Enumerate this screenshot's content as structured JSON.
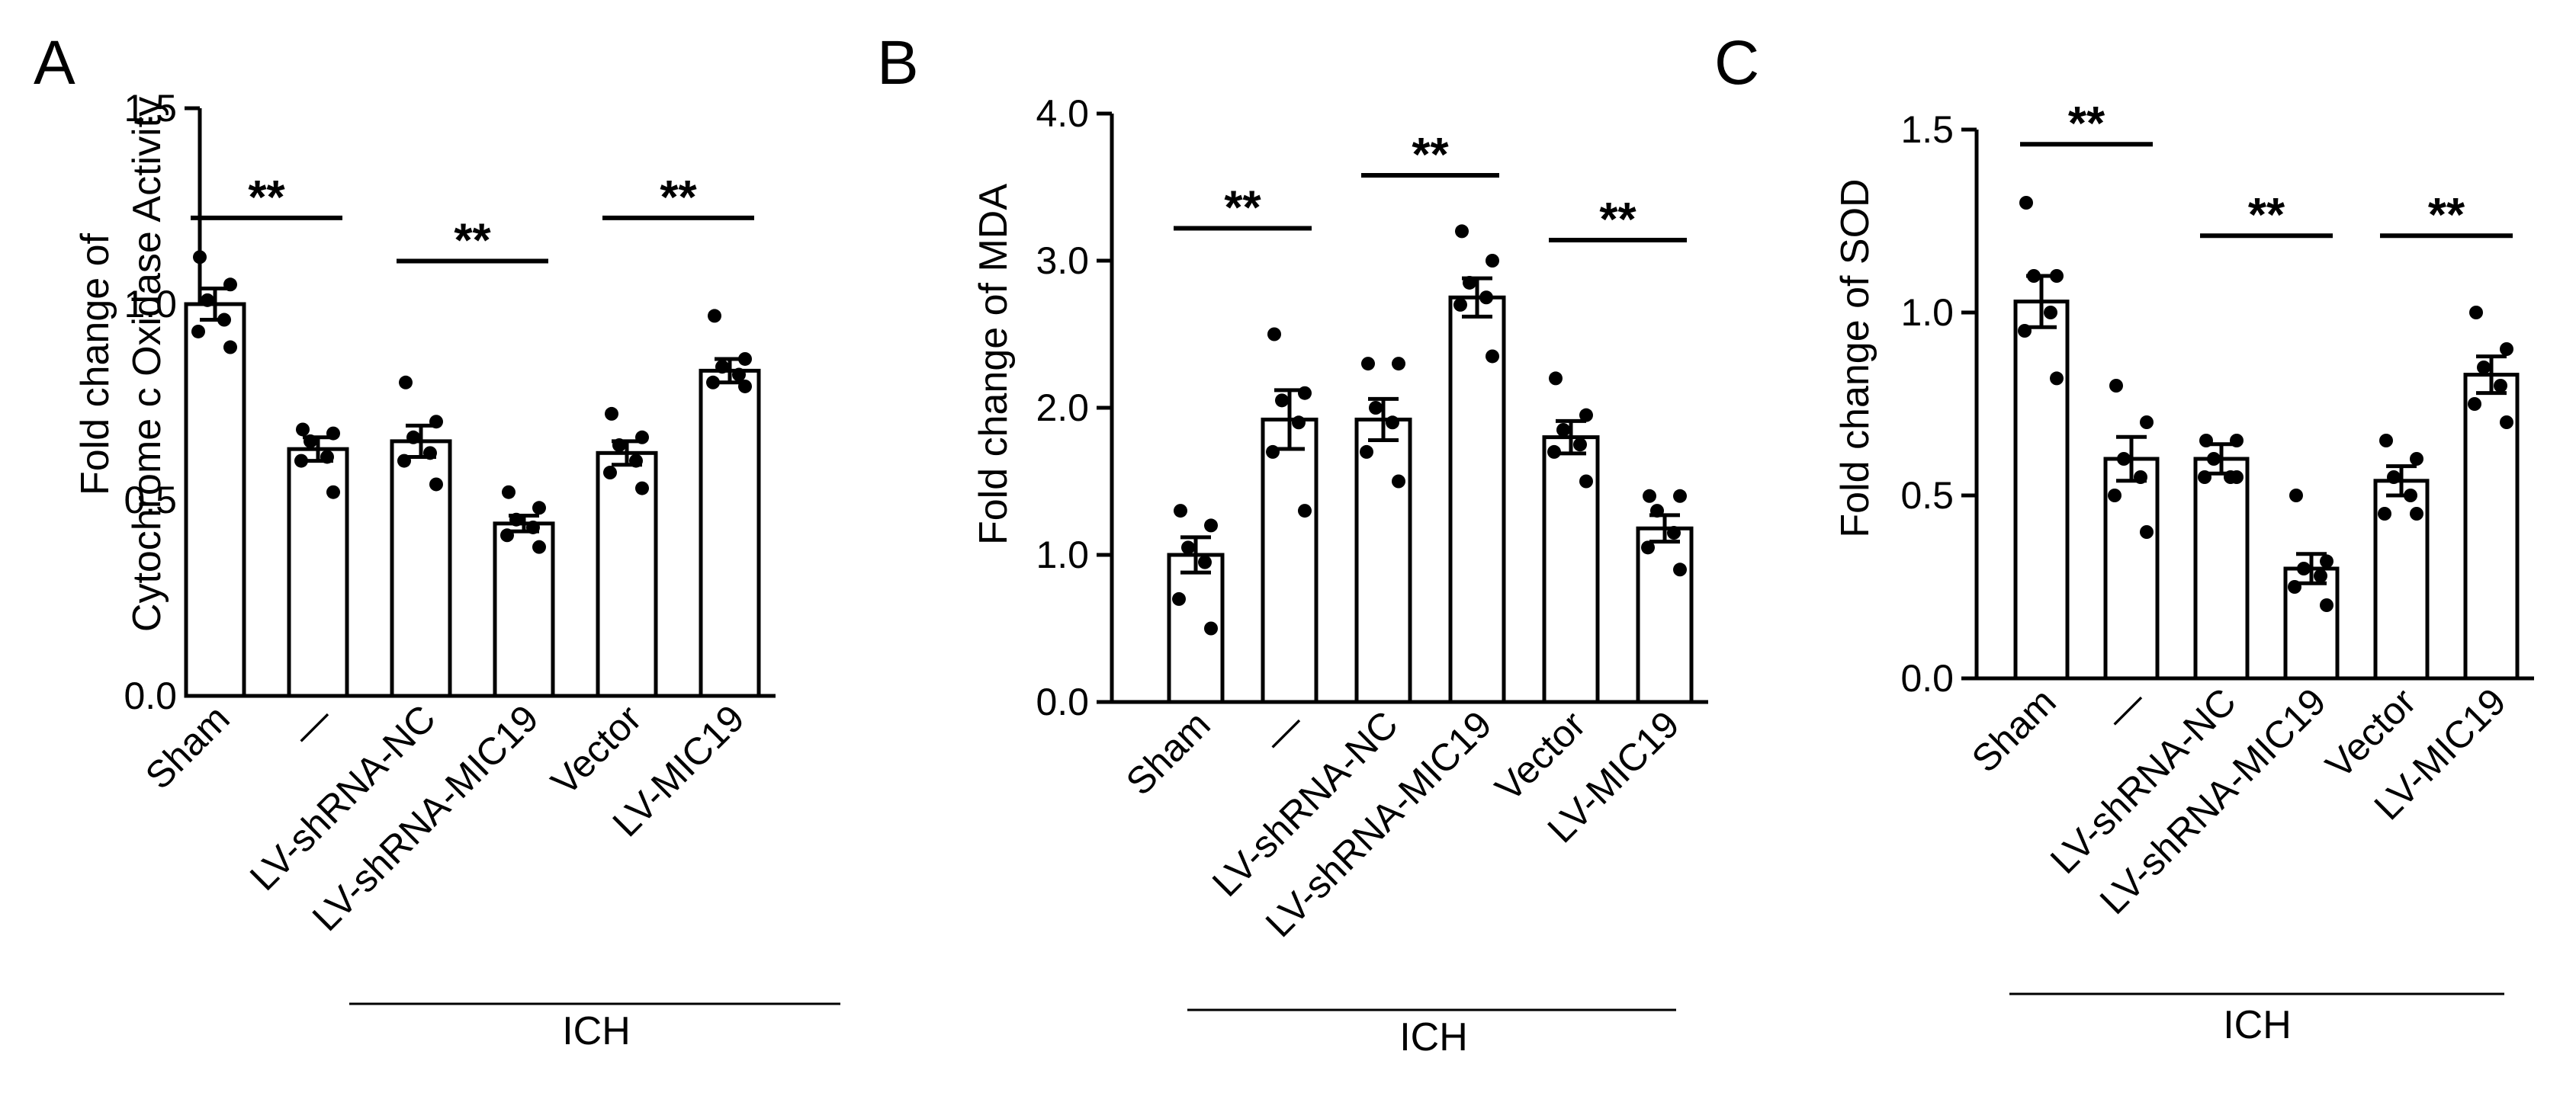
{
  "chart_data": [
    {
      "type": "bar",
      "panel": "A",
      "ylabel_lines": [
        "Fold change of",
        "Cytochrome c Oxidase Activity"
      ],
      "ylim": [
        0,
        1.5
      ],
      "yticks": [
        "0.0",
        "0.5",
        "1.0",
        "1.5"
      ],
      "categories": [
        "Sham",
        "—",
        "LV-shRNA-NC",
        "LV-shRNA-MIC19",
        "Vector",
        "LV-MIC19"
      ],
      "values": [
        1.0,
        0.63,
        0.65,
        0.44,
        0.62,
        0.83
      ],
      "errors": [
        0.04,
        0.03,
        0.04,
        0.02,
        0.03,
        0.03
      ],
      "points": [
        [
          1.12,
          1.05,
          1.01,
          0.96,
          0.93,
          0.89
        ],
        [
          0.68,
          0.67,
          0.65,
          0.61,
          0.6,
          0.52
        ],
        [
          0.8,
          0.7,
          0.66,
          0.62,
          0.6,
          0.54
        ],
        [
          0.52,
          0.48,
          0.45,
          0.43,
          0.41,
          0.38
        ],
        [
          0.72,
          0.66,
          0.64,
          0.6,
          0.57,
          0.53
        ],
        [
          0.97,
          0.86,
          0.84,
          0.82,
          0.8,
          0.79
        ]
      ],
      "significance": [
        {
          "from": 0,
          "to": 1,
          "y": 1.22,
          "label": "**"
        },
        {
          "from": 2,
          "to": 3,
          "y": 1.11,
          "label": "**"
        },
        {
          "from": 4,
          "to": 5,
          "y": 1.22,
          "label": "**"
        }
      ],
      "group_label": "ICH",
      "group_range": [
        1,
        5
      ]
    },
    {
      "type": "bar",
      "panel": "B",
      "ylabel_lines": [
        "Fold change of MDA"
      ],
      "ylim": [
        0,
        4.0
      ],
      "yticks": [
        "0.0",
        "1.0",
        "2.0",
        "3.0",
        "4.0"
      ],
      "categories": [
        "Sham",
        "—",
        "LV-shRNA-NC",
        "LV-shRNA-MIC19",
        "Vector",
        "LV-MIC19"
      ],
      "values": [
        1.0,
        1.92,
        1.92,
        2.75,
        1.8,
        1.18
      ],
      "errors": [
        0.12,
        0.2,
        0.14,
        0.13,
        0.11,
        0.09
      ],
      "points": [
        [
          1.3,
          1.2,
          1.05,
          0.95,
          0.7,
          0.5
        ],
        [
          2.5,
          2.1,
          2.05,
          1.9,
          1.7,
          1.3
        ],
        [
          2.3,
          2.3,
          2.0,
          1.9,
          1.7,
          1.5
        ],
        [
          3.2,
          3.0,
          2.85,
          2.75,
          2.7,
          2.35
        ],
        [
          2.2,
          1.95,
          1.85,
          1.75,
          1.7,
          1.5
        ],
        [
          1.4,
          1.4,
          1.3,
          1.15,
          1.05,
          0.9
        ]
      ],
      "significance": [
        {
          "from": 0,
          "to": 1,
          "y": 3.22,
          "label": "**"
        },
        {
          "from": 2,
          "to": 3,
          "y": 3.58,
          "label": "**"
        },
        {
          "from": 4,
          "to": 5,
          "y": 3.14,
          "label": "**"
        }
      ],
      "group_label": "ICH",
      "group_range": [
        1,
        5
      ]
    },
    {
      "type": "bar",
      "panel": "C",
      "ylabel_lines": [
        "Fold change of SOD"
      ],
      "ylim": [
        0,
        1.5
      ],
      "yticks": [
        "0.0",
        "0.5",
        "1.0",
        "1.5"
      ],
      "categories": [
        "Sham",
        "—",
        "LV-shRNA-NC",
        "LV-shRNA-MIC19",
        "Vector",
        "LV-MIC19"
      ],
      "values": [
        1.03,
        0.6,
        0.6,
        0.3,
        0.54,
        0.83
      ],
      "errors": [
        0.07,
        0.06,
        0.04,
        0.04,
        0.04,
        0.05
      ],
      "points": [
        [
          1.3,
          1.1,
          1.1,
          1.0,
          0.95,
          0.82
        ],
        [
          0.8,
          0.7,
          0.6,
          0.55,
          0.5,
          0.4
        ],
        [
          0.65,
          0.65,
          0.6,
          0.55,
          0.55,
          0.55
        ],
        [
          0.5,
          0.32,
          0.3,
          0.28,
          0.25,
          0.2
        ],
        [
          0.65,
          0.6,
          0.55,
          0.5,
          0.45,
          0.45
        ],
        [
          1.0,
          0.9,
          0.85,
          0.8,
          0.75,
          0.7
        ]
      ],
      "significance": [
        {
          "from": 0,
          "to": 1,
          "y": 1.46,
          "label": "**"
        },
        {
          "from": 2,
          "to": 3,
          "y": 1.21,
          "label": "**"
        },
        {
          "from": 4,
          "to": 5,
          "y": 1.21,
          "label": "**"
        }
      ],
      "group_label": "ICH",
      "group_range": [
        1,
        5
      ]
    }
  ]
}
